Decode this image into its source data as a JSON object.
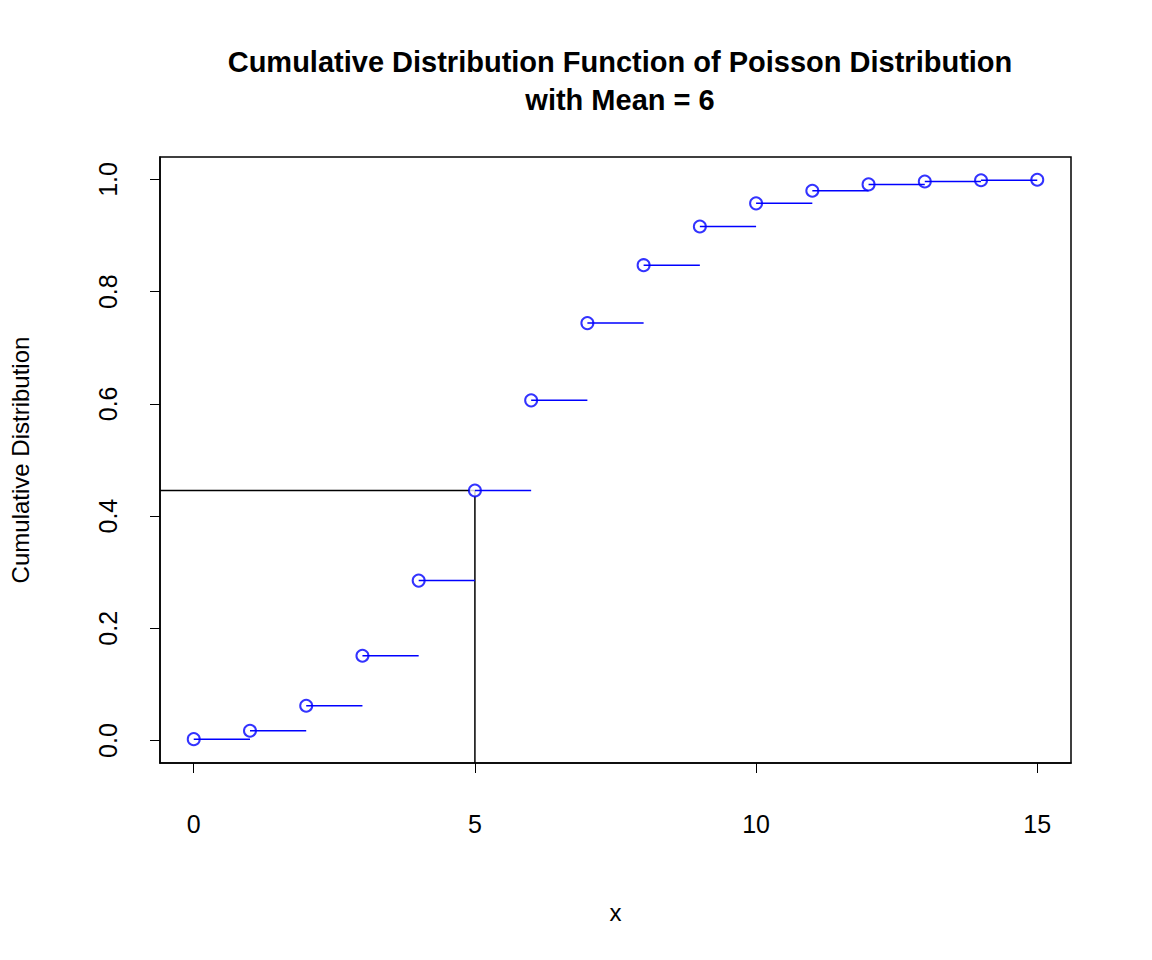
{
  "chart_data": {
    "type": "step",
    "title": "Cumulative Distribution Function of Poisson Distribution\nwith Mean = 6",
    "x_label": "x",
    "y_label": "Cumulative Distribution",
    "x": [
      0,
      1,
      2,
      3,
      4,
      5,
      6,
      7,
      8,
      9,
      10,
      11,
      12,
      13,
      14,
      15
    ],
    "values": [
      0.0025,
      0.0174,
      0.062,
      0.1512,
      0.2851,
      0.4457,
      0.6063,
      0.744,
      0.8472,
      0.9161,
      0.9574,
      0.9799,
      0.9912,
      0.9964,
      0.9986,
      0.9995
    ],
    "color": "#0000ff",
    "marker": "open_circle",
    "highlight": {
      "x": 5,
      "y": 0.4457,
      "color": "#000000"
    },
    "xlim": [
      -0.6,
      15.6
    ],
    "ylim": [
      -0.04,
      1.04
    ],
    "xticks": [
      0,
      5,
      10,
      15
    ],
    "yticks": [
      {
        "value": 0,
        "label": "0.0"
      },
      0.2,
      0.4,
      0.6,
      0.8,
      {
        "value": 1,
        "label": "1.0"
      }
    ],
    "grid": false
  }
}
